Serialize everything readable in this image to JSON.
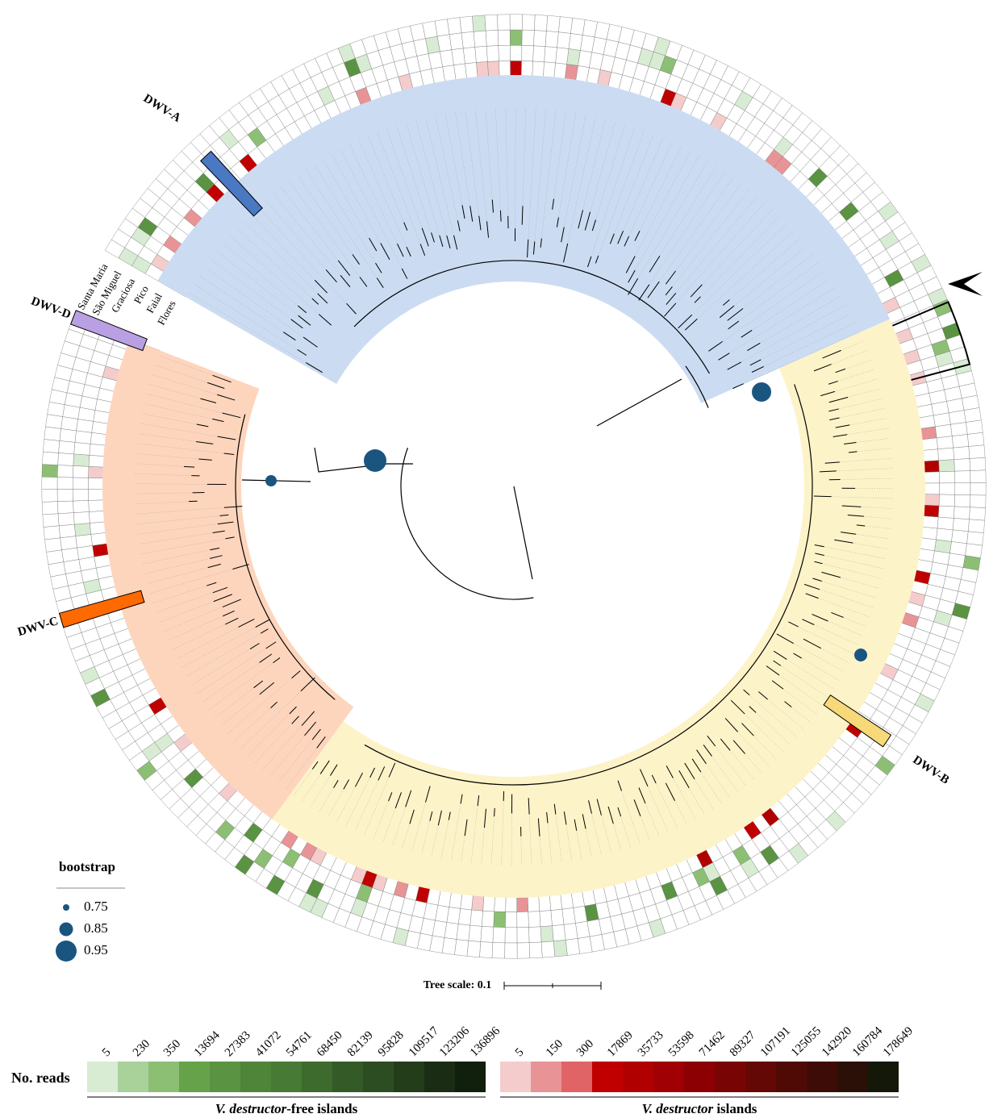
{
  "clades": [
    {
      "label": "DWV-A",
      "color": "#4a78c2"
    },
    {
      "label": "DWV-B",
      "color": "#f7d97a"
    },
    {
      "label": "DWV-C",
      "color": "#ff6a00"
    },
    {
      "label": "DWV-D",
      "color": "#b9a0e2"
    }
  ],
  "islands": [
    "Santa Maria",
    "São Miguel",
    "Graciosa",
    "Pico",
    "Faial",
    "Flores"
  ],
  "bootstrap": {
    "title": "bootstrap",
    "values": [
      0.75,
      0.85,
      0.95
    ]
  },
  "tree_scale": "Tree scale: 0.1",
  "legend": {
    "title": "No. reads",
    "free": {
      "caption_italic": "V. destructor",
      "caption_rest": "-free islands",
      "ticks": [
        5,
        230,
        350,
        13694,
        27383,
        41072,
        54761,
        68450,
        82139,
        95828,
        109517,
        123206,
        136896
      ],
      "colors": [
        "#d8ecd4",
        "#a9d19a",
        "#8cbf74",
        "#66a24a",
        "#5a9342",
        "#4f8539",
        "#477a34",
        "#3d6a2d",
        "#345b27",
        "#2c4d21",
        "#233d1b",
        "#1a2d14",
        "#10200c"
      ]
    },
    "infested": {
      "caption_italic": "V. destructor",
      "caption_rest": " islands",
      "ticks": [
        5,
        150,
        300,
        17869,
        35733,
        53598,
        71462,
        89327,
        107191,
        125055,
        142920,
        160784,
        178649
      ],
      "colors": [
        "#f4cccc",
        "#e89496",
        "#e06366",
        "#c00000",
        "#b00000",
        "#a00004",
        "#8c0004",
        "#780404",
        "#640806",
        "#500a06",
        "#3e0c06",
        "#2a1006",
        "#141808"
      ]
    }
  }
}
